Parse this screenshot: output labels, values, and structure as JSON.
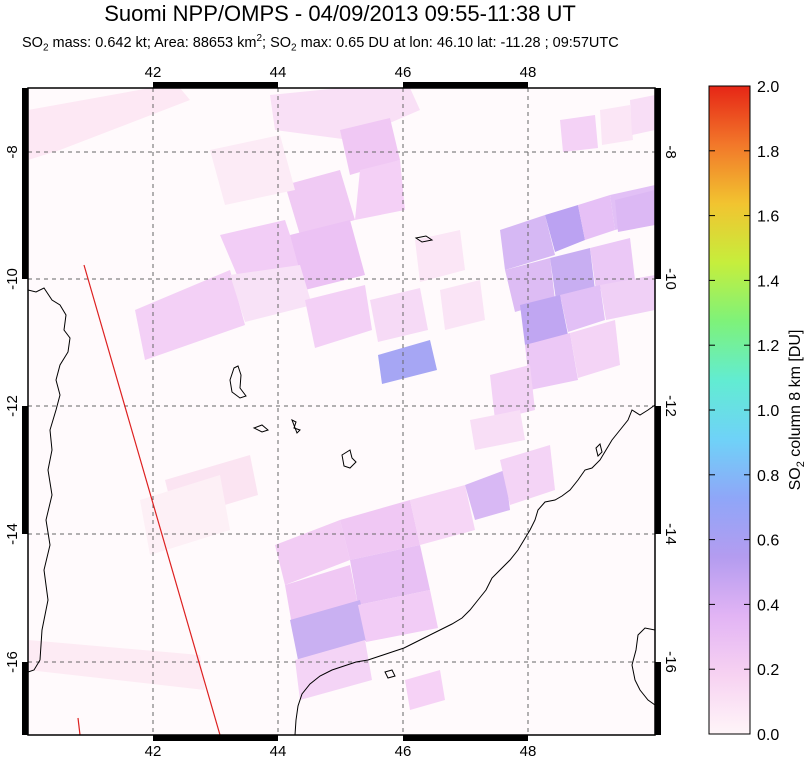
{
  "title": "Suomi NPP/OMPS - 04/09/2013 09:55-11:38 UT",
  "subtitle": {
    "p1": "SO",
    "p1_sub": "2",
    "p2": " mass: 0.642 kt; Area: 88653 km",
    "p2_sup": "2",
    "p3": "; SO",
    "p3_sub": "2",
    "p4": " max: 0.65 DU at lon: 46.10 lat: -11.28 ; 09:57UTC"
  },
  "map": {
    "lon_ticks": [
      "42",
      "44",
      "46",
      "48"
    ],
    "lat_ticks": [
      "-8",
      "-10",
      "-12",
      "-14",
      "-16"
    ]
  },
  "colorbar": {
    "label_main": "SO",
    "label_sub": "2",
    "label_rest": " column 8 km [DU]",
    "ticks": [
      "2.0",
      "1.8",
      "1.6",
      "1.4",
      "1.2",
      "1.0",
      "0.8",
      "0.6",
      "0.4",
      "0.2",
      "0.0"
    ],
    "colors": [
      "#fff5f8",
      "#f7d2f2",
      "#e2b4f4",
      "#b49cf0",
      "#8fa6f8",
      "#6fd2f8",
      "#62ecd2",
      "#7ef27a",
      "#c6ee3c",
      "#f2c430",
      "#f2782a",
      "#e62616"
    ]
  },
  "colors": {
    "track": "#dd2020",
    "coast": "#000000"
  }
}
